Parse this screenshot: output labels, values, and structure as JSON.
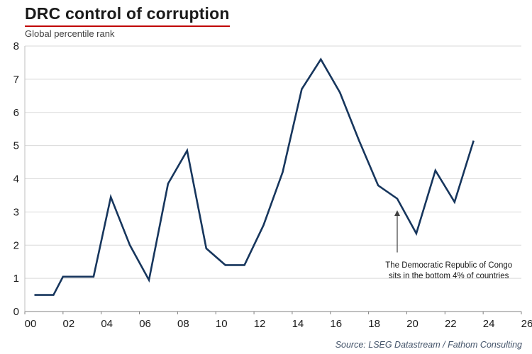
{
  "header": {
    "title": "DRC control of corruption",
    "subtitle": "Global percentile rank",
    "accent_color": "#c00000"
  },
  "source": "Source: LSEG Datastream / Fathom Consulting",
  "chart_data": {
    "type": "line",
    "title": "DRC control of corruption",
    "subtitle": "Global percentile rank",
    "x": [
      0.5,
      1.5,
      2.0,
      3.6,
      4.5,
      5.5,
      6.5,
      7.5,
      8.5,
      9.5,
      10.5,
      11.5,
      12.5,
      13.5,
      14.5,
      15.5,
      16.5,
      17.5,
      18.5,
      19.5,
      20.5,
      21.5,
      22.5,
      23.5
    ],
    "y": [
      0.5,
      0.5,
      1.05,
      1.05,
      3.45,
      2.0,
      0.95,
      3.85,
      4.85,
      1.9,
      1.4,
      1.4,
      2.6,
      4.2,
      6.7,
      7.6,
      6.6,
      5.15,
      3.8,
      3.4,
      2.35,
      4.25,
      3.3,
      5.15
    ],
    "xlim": [
      0,
      26
    ],
    "ylim": [
      0,
      8
    ],
    "x_ticks": [
      0,
      2,
      4,
      6,
      8,
      10,
      12,
      14,
      16,
      18,
      20,
      22,
      24,
      26
    ],
    "x_tick_labels": [
      "00",
      "02",
      "04",
      "06",
      "08",
      "10",
      "12",
      "14",
      "16",
      "18",
      "20",
      "22",
      "24",
      "26"
    ],
    "y_ticks": [
      0,
      1,
      2,
      3,
      4,
      5,
      6,
      7,
      8
    ],
    "y_tick_labels": [
      "0",
      "1",
      "2",
      "3",
      "4",
      "5",
      "6",
      "7",
      "8"
    ],
    "grid": true,
    "legend": "none",
    "line_color": "#17365d",
    "annotation": {
      "text_lines": [
        "The Democratic Republic of Congo",
        "sits in the bottom 4% of countries"
      ],
      "arrow_x": 19.5,
      "arrow_y_from": 1.78,
      "arrow_y_to": 3.05,
      "text_x": 22.2,
      "text_y": 1.32
    }
  }
}
